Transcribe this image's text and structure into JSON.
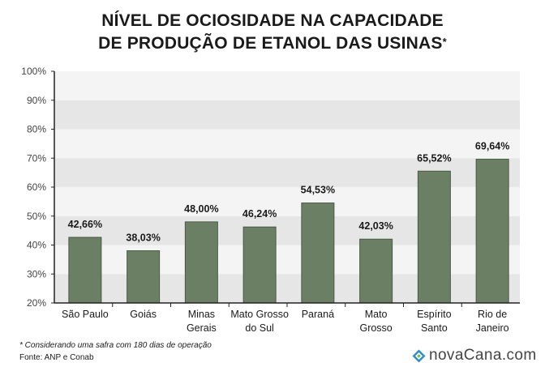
{
  "title": {
    "line1": "NÍVEL DE OCIOSIDADE NA CAPACIDADE",
    "line2": "DE PRODUÇÃO DE ETANOL DAS USINAS",
    "marker": "*"
  },
  "footnote": "* Considerando uma safra com 180 dias de operação",
  "source": "Fonte: ANP e Conab",
  "brand": {
    "name": "novaCana.com",
    "icon": "diamond-logo-icon"
  },
  "colors": {
    "bar": "#6b7f64",
    "bar_stroke": "#4a5a44",
    "band_dark": "#e6e6e6",
    "band_light": "#f4f4f4"
  },
  "chart_data": {
    "type": "bar",
    "categories": [
      [
        "São Paulo"
      ],
      [
        "Goiás"
      ],
      [
        "Minas",
        "Gerais"
      ],
      [
        "Mato Grosso",
        "do Sul"
      ],
      [
        "Paraná"
      ],
      [
        "Mato",
        "Grosso"
      ],
      [
        "Espírito",
        "Santo"
      ],
      [
        "Rio de",
        "Janeiro"
      ]
    ],
    "values": [
      42.66,
      38.03,
      48.0,
      46.24,
      54.53,
      42.03,
      65.52,
      69.64
    ],
    "value_labels": [
      "42,66%",
      "38,03%",
      "48,00%",
      "46,24%",
      "54,53%",
      "42,03%",
      "65,52%",
      "69,64%"
    ],
    "ylim": [
      20,
      100
    ],
    "yticks": [
      20,
      30,
      40,
      50,
      60,
      70,
      80,
      90,
      100
    ],
    "ytick_labels": [
      "20%",
      "30%",
      "40%",
      "50%",
      "60%",
      "70%",
      "80%",
      "90%",
      "100%"
    ],
    "grid": "alternating bands",
    "legend": "none"
  }
}
